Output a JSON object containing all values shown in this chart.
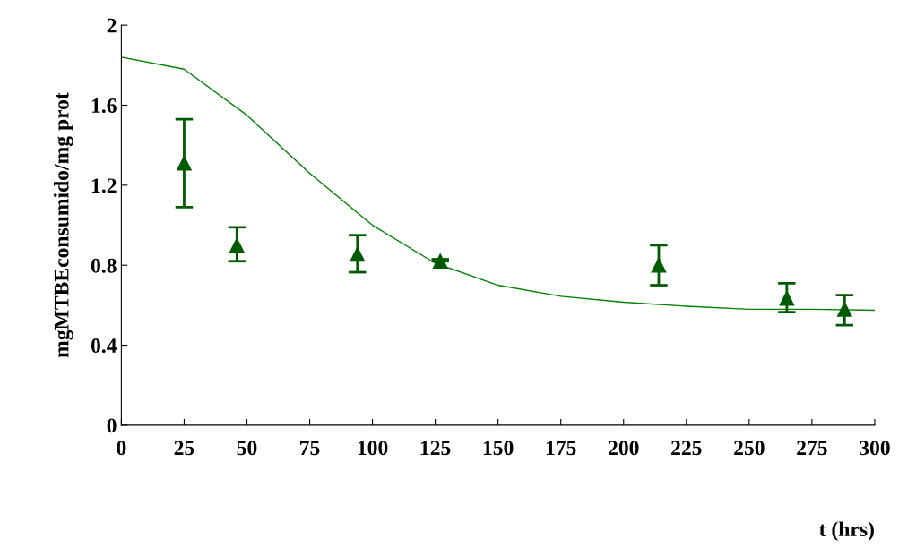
{
  "chart_data": {
    "type": "scatter",
    "xlabel": "t (hrs)",
    "ylabel": "mgMTBEconsumido/mg prot",
    "xlim": [
      0,
      300
    ],
    "xticks": [
      0,
      25,
      50,
      75,
      100,
      125,
      150,
      175,
      200,
      225,
      250,
      275,
      300
    ],
    "ylim": [
      0,
      2
    ],
    "yticks": [
      0,
      0.4,
      0.8,
      1.2,
      1.6,
      2
    ],
    "grid": false,
    "legend": false,
    "series": [
      {
        "type": "line",
        "color": "#008000",
        "marker": "none",
        "line_style": "solid",
        "x": [
          0,
          25,
          50,
          75,
          100,
          125,
          150,
          175,
          200,
          225,
          250,
          275,
          300
        ],
        "values": [
          1.84,
          1.78,
          1.55,
          1.26,
          1.0,
          0.81,
          0.7,
          0.645,
          0.615,
          0.595,
          0.58,
          0.58,
          0.575
        ]
      },
      {
        "color": "#005a00",
        "marker": "triangle",
        "x": [
          25,
          46,
          94,
          127,
          214,
          265,
          288
        ],
        "values": [
          1.31,
          0.9,
          0.855,
          0.82,
          0.8,
          0.635,
          0.58
        ],
        "errors": [
          [
            1.09,
            1.53
          ],
          [
            0.82,
            0.99
          ],
          [
            0.765,
            0.95
          ],
          [
            0.82,
            0.83
          ],
          [
            0.7,
            0.9
          ],
          [
            0.565,
            0.71
          ],
          [
            0.5,
            0.65
          ]
        ]
      }
    ]
  }
}
